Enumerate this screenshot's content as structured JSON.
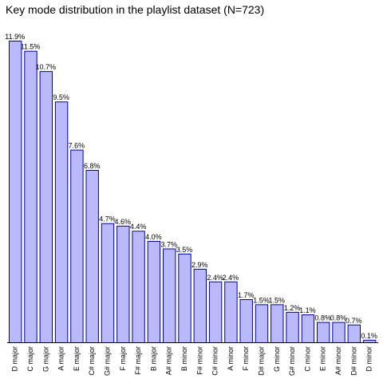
{
  "chart_data": {
    "type": "bar",
    "title": "Key mode distribution in the playlist dataset (N=723)",
    "xlabel": "",
    "ylabel": "",
    "ylim": [
      0,
      11.9
    ],
    "grid": false,
    "legend": "none",
    "bar_fill": "#b9b9fb",
    "bar_edge": "#0000aa",
    "categories": [
      "D major",
      "C major",
      "G major",
      "A major",
      "E major",
      "C# major",
      "G# major",
      "F major",
      "F# major",
      "B major",
      "A# major",
      "B minor",
      "F# minor",
      "C# minor",
      "A minor",
      "F minor",
      "D# major",
      "G minor",
      "G# minor",
      "C minor",
      "E minor",
      "A# minor",
      "D# minor",
      "D minor"
    ],
    "values": [
      11.9,
      11.5,
      10.7,
      9.5,
      7.6,
      6.8,
      4.7,
      4.6,
      4.4,
      4.0,
      3.7,
      3.5,
      2.9,
      2.4,
      2.4,
      1.7,
      1.5,
      1.5,
      1.2,
      1.1,
      0.8,
      0.8,
      0.7,
      0.1
    ],
    "value_labels": [
      "11.9%",
      "11.5%",
      "10.7%",
      "9.5%",
      "7.6%",
      "6.8%",
      "4.7%",
      "4.6%",
      "4.4%",
      "4.0%",
      "3.7%",
      "3.5%",
      "2.9%",
      "2.4%",
      "2.4%",
      "1.7%",
      "1.5%",
      "1.5%",
      "1.2%",
      "1.1%",
      "0.8%",
      "0.8%",
      "0.7%",
      "0.1%"
    ]
  }
}
